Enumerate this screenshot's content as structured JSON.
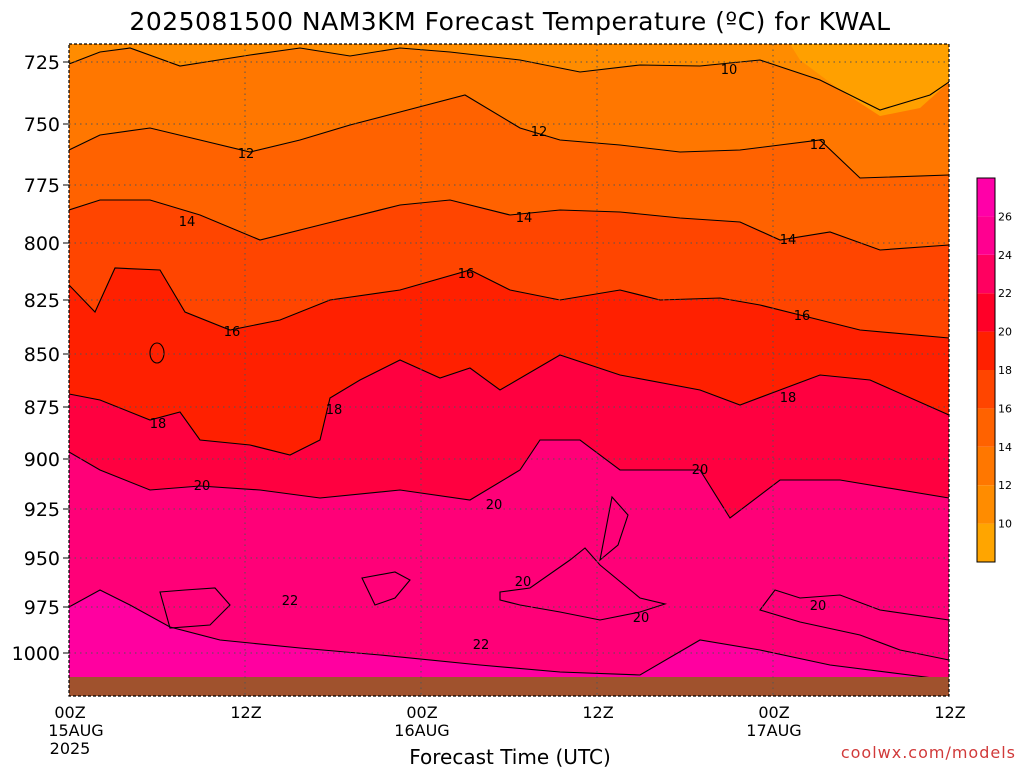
{
  "chart_data": {
    "type": "heatmap",
    "title": "2025081500 NAM3KM Forecast Temperature (ºC) for KWAL",
    "xlabel": "Forecast Time (UTC)",
    "ylabel": "",
    "x_ticks": [
      {
        "hour": 0,
        "label": "00Z",
        "sub1": "15AUG",
        "sub2": "2025"
      },
      {
        "hour": 12,
        "label": "12Z",
        "sub1": "",
        "sub2": ""
      },
      {
        "hour": 24,
        "label": "00Z",
        "sub1": "16AUG",
        "sub2": ""
      },
      {
        "hour": 36,
        "label": "12Z",
        "sub1": "",
        "sub2": ""
      },
      {
        "hour": 48,
        "label": "00Z",
        "sub1": "17AUG",
        "sub2": ""
      },
      {
        "hour": 60,
        "label": "12Z",
        "sub1": "",
        "sub2": ""
      }
    ],
    "x_range_hours": [
      0,
      60
    ],
    "y_ticks": [
      725,
      750,
      775,
      800,
      825,
      850,
      875,
      900,
      925,
      950,
      975,
      1000
    ],
    "y_range_hpa": [
      715,
      1012
    ],
    "y_reversed": true,
    "colorbar": {
      "levels": [
        8,
        10,
        12,
        14,
        16,
        18,
        20,
        22,
        24,
        26,
        28
      ],
      "tick_labels": [
        10,
        12,
        14,
        16,
        18,
        20,
        22,
        24,
        26
      ],
      "colors": [
        "#FFA500",
        "#FF8C00",
        "#FF7700",
        "#FF6200",
        "#FF4500",
        "#FF2000",
        "#FF0028",
        "#FF0060",
        "#FF0090",
        "#FF00A8"
      ]
    },
    "contour_labels": [
      "10",
      "12",
      "12",
      "12",
      "14",
      "14",
      "14",
      "16",
      "16",
      "16",
      "18",
      "18",
      "18",
      "20",
      "20",
      "20",
      "20",
      "20",
      "20",
      "22",
      "22"
    ],
    "terrain_color": "#A0522D",
    "grid": true
  },
  "credit": "coolwx.com/models"
}
